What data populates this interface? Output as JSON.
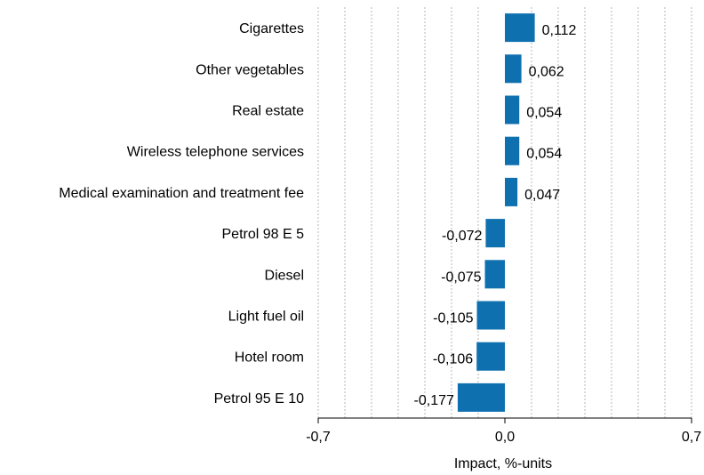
{
  "chart_data": {
    "type": "bar",
    "orientation": "horizontal",
    "categories": [
      "Cigarettes",
      "Other vegetables",
      "Real estate",
      "Wireless telephone services",
      "Medical examination and treatment fee",
      "Petrol 98 E 5",
      "Diesel",
      "Light fuel oil",
      "Hotel room",
      "Petrol 95 E 10"
    ],
    "values": [
      0.112,
      0.062,
      0.054,
      0.054,
      0.047,
      -0.072,
      -0.075,
      -0.105,
      -0.106,
      -0.177
    ],
    "value_labels": [
      "0,112",
      "0,062",
      "0,054",
      "0,054",
      "0,047",
      "-0,072",
      "-0,075",
      "-0,105",
      "-0,106",
      "-0,177"
    ],
    "xlabel": "Impact, %-units",
    "xlim": [
      -0.7,
      0.7
    ],
    "xticks": [
      -0.7,
      0.0,
      0.7
    ],
    "xtick_labels": [
      "-0,7",
      "0,0",
      "0,7"
    ],
    "gridlines": [
      -0.7,
      -0.6,
      -0.5,
      -0.4,
      -0.3,
      -0.2,
      -0.1,
      0.1,
      0.2,
      0.3,
      0.4,
      0.5,
      0.6,
      0.7
    ],
    "grid": true,
    "legend": "none",
    "bar_color": "#0f70b0"
  }
}
